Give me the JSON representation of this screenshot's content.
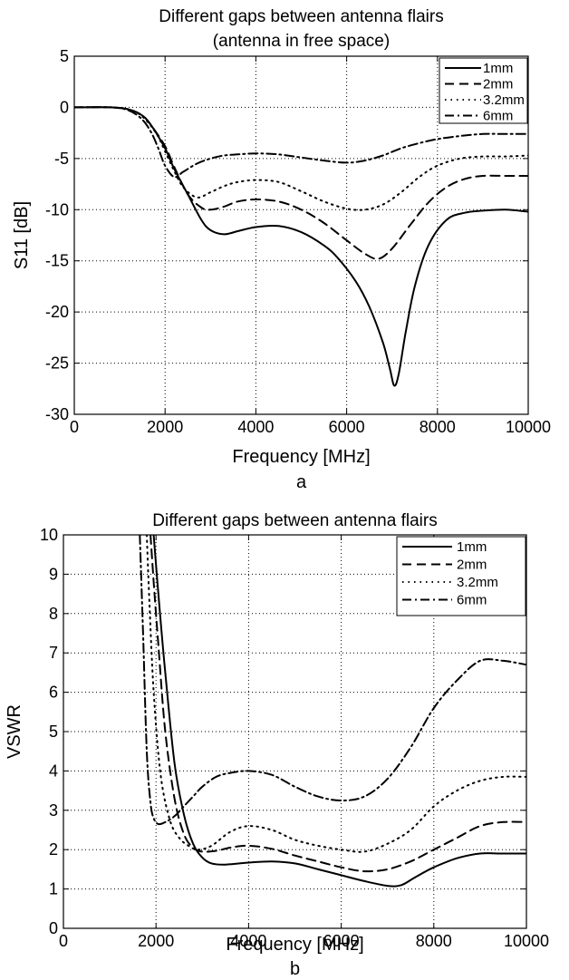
{
  "chart_data": [
    {
      "type": "line",
      "title": [
        "Different gaps between antenna flairs",
        "(antenna in free space)"
      ],
      "xlabel": "Frequency [MHz]",
      "ylabel": "S11 [dB]",
      "caption": "a",
      "xlim": [
        0,
        10000
      ],
      "ylim": [
        -30,
        5
      ],
      "xticks": [
        0,
        2000,
        4000,
        6000,
        8000,
        10000
      ],
      "yticks": [
        5,
        0,
        -5,
        -10,
        -15,
        -20,
        -25,
        -30
      ],
      "xtick_labels": [
        "0",
        "2000",
        "4000",
        "6000",
        "8000",
        "10000"
      ],
      "ytick_labels": [
        "5",
        "0",
        "-5",
        "-10",
        "-15",
        "-20",
        "-25",
        "-30"
      ],
      "grid": true,
      "legend_position": "top-right",
      "series": [
        {
          "name": "1mm",
          "style": "solid",
          "x": [
            0,
            800,
            1200,
            1500,
            1700,
            2000,
            2200,
            2500,
            2800,
            3000,
            3300,
            3600,
            4000,
            4500,
            5000,
            5500,
            5800,
            6200,
            6500,
            6800,
            6950,
            7050,
            7150,
            7300,
            7500,
            7800,
            8200,
            8600,
            9000,
            9500,
            10000
          ],
          "y": [
            0,
            0,
            -0.2,
            -0.8,
            -1.8,
            -4,
            -6,
            -8.5,
            -11,
            -12,
            -12.4,
            -12.1,
            -11.7,
            -11.6,
            -12.2,
            -13.5,
            -14.7,
            -17,
            -19.5,
            -23,
            -25.5,
            -27.2,
            -26,
            -22,
            -17.5,
            -13.5,
            -11,
            -10.3,
            -10.1,
            -10,
            -10.2
          ]
        },
        {
          "name": "2mm",
          "style": "dashed",
          "x": [
            0,
            800,
            1200,
            1500,
            1700,
            2000,
            2200,
            2500,
            2800,
            3000,
            3300,
            3600,
            4000,
            4500,
            5000,
            5500,
            6000,
            6400,
            6700,
            7000,
            7400,
            7800,
            8200,
            8600,
            9000,
            9500,
            10000
          ],
          "y": [
            0,
            0,
            -0.2,
            -0.8,
            -1.8,
            -3.8,
            -5.8,
            -8.5,
            -9.8,
            -10,
            -9.7,
            -9.2,
            -9,
            -9.2,
            -10,
            -11.3,
            -13,
            -14.3,
            -14.8,
            -13.8,
            -11.5,
            -9.3,
            -7.8,
            -7,
            -6.7,
            -6.7,
            -6.7
          ]
        },
        {
          "name": "3.2mm",
          "style": "dotted",
          "x": [
            0,
            800,
            1200,
            1500,
            1800,
            2000,
            2200,
            2400,
            2700,
            3000,
            3300,
            3600,
            4000,
            4500,
            5000,
            5500,
            6000,
            6400,
            6800,
            7200,
            7600,
            8000,
            8500,
            9000,
            9500,
            10000
          ],
          "y": [
            0,
            0,
            -0.2,
            -0.9,
            -2.5,
            -4.3,
            -6.2,
            -7.8,
            -8.8,
            -8.3,
            -7.7,
            -7.3,
            -7.1,
            -7.3,
            -8.2,
            -9.2,
            -9.9,
            -10,
            -9.5,
            -8.3,
            -6.8,
            -5.7,
            -5,
            -4.8,
            -4.8,
            -4.7
          ]
        },
        {
          "name": "6mm",
          "style": "dashdot",
          "x": [
            0,
            800,
            1200,
            1500,
            1700,
            1850,
            2000,
            2200,
            2400,
            2700,
            3000,
            3300,
            3600,
            4000,
            4500,
            5000,
            5500,
            6000,
            6400,
            6800,
            7200,
            7600,
            8000,
            8500,
            9000,
            9500,
            10000
          ],
          "y": [
            0,
            0,
            -0.3,
            -1.2,
            -2.5,
            -4,
            -5.7,
            -6.8,
            -6.3,
            -5.5,
            -5,
            -4.7,
            -4.6,
            -4.5,
            -4.6,
            -4.9,
            -5.2,
            -5.4,
            -5.2,
            -4.7,
            -4,
            -3.5,
            -3.1,
            -2.8,
            -2.6,
            -2.6,
            -2.6
          ]
        }
      ]
    },
    {
      "type": "line",
      "title": [
        "Different gaps between antenna flairs"
      ],
      "xlabel": "Frequency [MHz]",
      "ylabel": "VSWR",
      "caption": "b",
      "xlim": [
        0,
        10000
      ],
      "ylim": [
        0,
        10
      ],
      "xticks": [
        0,
        2000,
        4000,
        6000,
        8000,
        10000
      ],
      "yticks": [
        10,
        9,
        8,
        7,
        6,
        5,
        4,
        3,
        2,
        1,
        0
      ],
      "xtick_labels": [
        "0",
        "2000",
        "4000",
        "6000",
        "8000",
        "10000"
      ],
      "ytick_labels": [
        "10",
        "9",
        "8",
        "7",
        "6",
        "5",
        "4",
        "3",
        "2",
        "1",
        "0"
      ],
      "grid": true,
      "legend_position": "top-right",
      "series": [
        {
          "name": "1mm",
          "style": "solid",
          "x": [
            1950,
            2050,
            2200,
            2400,
            2600,
            2800,
            3000,
            3200,
            3500,
            4000,
            4500,
            5000,
            5500,
            6000,
            6500,
            7000,
            7300,
            7600,
            8000,
            8500,
            9000,
            9500,
            10000
          ],
          "y": [
            10,
            8.5,
            6.5,
            4.2,
            2.9,
            2.15,
            1.8,
            1.65,
            1.62,
            1.67,
            1.7,
            1.65,
            1.5,
            1.35,
            1.2,
            1.08,
            1.1,
            1.3,
            1.55,
            1.78,
            1.9,
            1.9,
            1.9
          ]
        },
        {
          "name": "2mm",
          "style": "dashed",
          "x": [
            1880,
            1950,
            2050,
            2200,
            2400,
            2600,
            2800,
            3000,
            3300,
            3600,
            4000,
            4500,
            5000,
            5500,
            6000,
            6500,
            7000,
            7500,
            8000,
            8500,
            9000,
            9500,
            10000
          ],
          "y": [
            10,
            8.8,
            7.2,
            5,
            3.3,
            2.4,
            2.05,
            1.95,
            1.97,
            2.05,
            2.1,
            2.02,
            1.85,
            1.7,
            1.55,
            1.45,
            1.5,
            1.7,
            2,
            2.3,
            2.6,
            2.7,
            2.7
          ]
        },
        {
          "name": "3.2mm",
          "style": "dotted",
          "x": [
            1800,
            1850,
            1950,
            2100,
            2300,
            2500,
            2700,
            2900,
            3200,
            3600,
            4000,
            4500,
            5000,
            5500,
            6000,
            6500,
            7000,
            7500,
            8000,
            8500,
            9000,
            9500,
            10000
          ],
          "y": [
            10,
            8.5,
            6,
            3.9,
            2.75,
            2.3,
            2.1,
            2,
            2.1,
            2.45,
            2.6,
            2.5,
            2.25,
            2.1,
            2,
            1.95,
            2.15,
            2.5,
            3.1,
            3.5,
            3.75,
            3.85,
            3.85
          ]
        },
        {
          "name": "6mm",
          "style": "dashdot",
          "x": [
            1650,
            1720,
            1800,
            1880,
            1950,
            2050,
            2200,
            2400,
            2600,
            2800,
            3000,
            3300,
            3600,
            4000,
            4500,
            5000,
            5500,
            6000,
            6500,
            7000,
            7500,
            8000,
            8500,
            9000,
            9500,
            10000
          ],
          "y": [
            10,
            7.5,
            4.5,
            3.2,
            2.8,
            2.65,
            2.7,
            2.85,
            3.1,
            3.35,
            3.6,
            3.85,
            3.95,
            4,
            3.9,
            3.6,
            3.35,
            3.25,
            3.35,
            3.8,
            4.6,
            5.6,
            6.3,
            6.8,
            6.8,
            6.7
          ]
        }
      ]
    }
  ]
}
